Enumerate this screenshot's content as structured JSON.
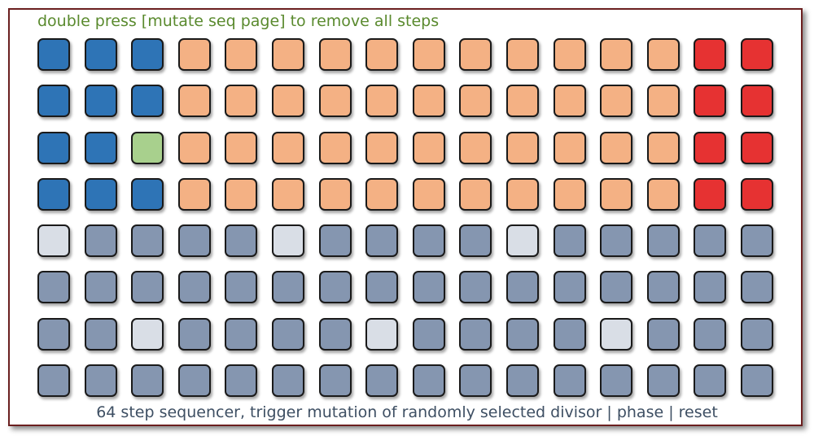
{
  "header": {
    "hint": "double press [mutate seq page] to remove all steps"
  },
  "footer": {
    "caption": "64 step sequencer, trigger mutation of randomly selected divisor | phase | reset"
  },
  "palette": {
    "B": "#2e74b6",
    "O": "#f4b184",
    "R": "#e63232",
    "G": "#a8d08d",
    "S": "#8596b0",
    "L": "#d9dee6"
  },
  "grid": {
    "rows": [
      "BBBOOOOOOOOOOORR",
      "BBBOOOOOOOOOOORR",
      "BBGOOOOOOOOOOORR",
      "BBBOOOOOOOOOOORR",
      "LSSSSLSSSSLSSSSS",
      "SSSSSSSSSSSSSSSS",
      "SSLSSSSLSSSSLSSS",
      "SSSSSSSSSSSSSSSS"
    ]
  }
}
